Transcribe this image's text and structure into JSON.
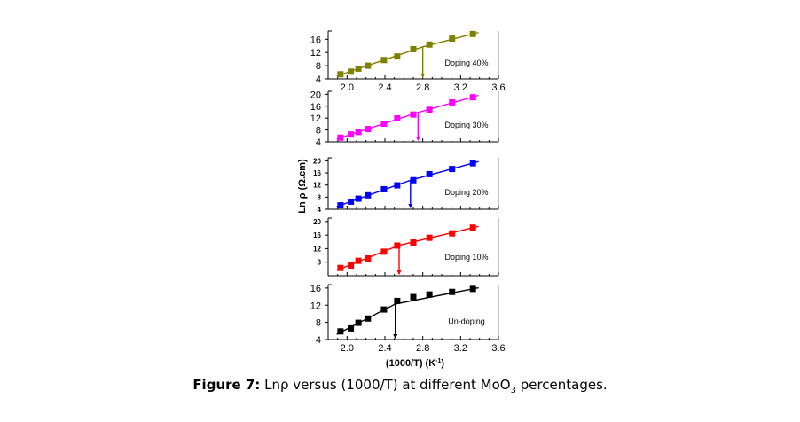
{
  "chart_data": [
    {
      "type": "line",
      "annotation": "Doping 40%",
      "color": "#808000",
      "x": [
        1.93,
        2.04,
        2.12,
        2.22,
        2.39,
        2.53,
        2.7,
        2.87,
        3.11,
        3.33
      ],
      "values": [
        5.4,
        6.2,
        7.1,
        8.0,
        9.7,
        10.8,
        13.0,
        14.4,
        16.2,
        17.6
      ],
      "transition_x": 2.8,
      "yticks": [
        4,
        8,
        12,
        16
      ],
      "ylim": [
        4,
        18.5
      ],
      "xlim": [
        1.8,
        3.6
      ],
      "xticks": [
        2.0,
        2.4,
        2.8,
        3.2,
        3.6
      ],
      "show_xtick_labels": true
    },
    {
      "type": "line",
      "annotation": "Doping 30%",
      "color": "#ff00ff",
      "x": [
        1.93,
        2.04,
        2.12,
        2.22,
        2.39,
        2.53,
        2.7,
        2.87,
        3.11,
        3.33
      ],
      "values": [
        5.4,
        6.5,
        7.3,
        8.3,
        10.1,
        11.9,
        13.2,
        14.8,
        17.3,
        19.0
      ],
      "transition_x": 2.75,
      "yticks": [
        4,
        8,
        12,
        16,
        20
      ],
      "ylim": [
        4,
        21
      ],
      "xlim": [
        1.8,
        3.6
      ],
      "xticks": [
        2.0,
        2.4,
        2.8,
        3.2,
        3.6
      ],
      "show_xtick_labels": false
    },
    {
      "type": "line",
      "annotation": "Doping 20%",
      "color": "#0000ff",
      "x": [
        1.93,
        2.04,
        2.12,
        2.22,
        2.39,
        2.53,
        2.7,
        2.87,
        3.11,
        3.33
      ],
      "values": [
        5.3,
        6.5,
        7.5,
        8.6,
        10.6,
        11.9,
        13.6,
        15.6,
        17.3,
        19.2
      ],
      "transition_x": 2.67,
      "yticks": [
        4,
        8,
        12,
        16,
        20
      ],
      "ylim": [
        4,
        21
      ],
      "xlim": [
        1.8,
        3.6
      ],
      "xticks": [
        2.0,
        2.4,
        2.8,
        3.2,
        3.6
      ],
      "show_xtick_labels": false
    },
    {
      "type": "line",
      "annotation": "Doping 10%",
      "color": "#ff0000",
      "x": [
        1.93,
        2.04,
        2.12,
        2.22,
        2.39,
        2.53,
        2.7,
        2.87,
        3.11,
        3.33
      ],
      "values": [
        6.3,
        7.0,
        8.4,
        9.1,
        11.1,
        12.9,
        13.8,
        15.2,
        16.5,
        18.2
      ],
      "transition_x": 2.55,
      "yticks": [
        8,
        12,
        16,
        20
      ],
      "ylim": [
        4,
        21
      ],
      "xlim": [
        1.8,
        3.6
      ],
      "xticks": [
        2.0,
        2.4,
        2.8,
        3.2,
        3.6
      ],
      "show_xtick_labels": false
    },
    {
      "type": "line",
      "annotation": "Un-doping",
      "color": "#000000",
      "x": [
        1.93,
        2.04,
        2.12,
        2.22,
        2.39,
        2.53,
        2.7,
        2.87,
        3.11,
        3.33
      ],
      "values": [
        5.9,
        6.6,
        7.9,
        8.9,
        11.0,
        13.0,
        13.9,
        14.5,
        15.1,
        15.8
      ],
      "transition_x": 2.51,
      "yticks": [
        4,
        8,
        12,
        16
      ],
      "ylim": [
        4,
        16.8
      ],
      "xlim": [
        1.8,
        3.6
      ],
      "xticks": [
        2.0,
        2.4,
        2.8,
        3.2,
        3.6
      ],
      "show_xtick_labels": true
    }
  ],
  "axes": {
    "ylabel": "Ln ρ (Ω.cm)",
    "xlabel_main": "(1000/T) (K",
    "xlabel_sup": "-1",
    "xlabel_end": ")"
  },
  "caption": {
    "label": "Figure 7:",
    "text_before": " Lnρ versus (1000/T) at different MoO",
    "subscript": "3",
    "text_after": " percentages."
  }
}
